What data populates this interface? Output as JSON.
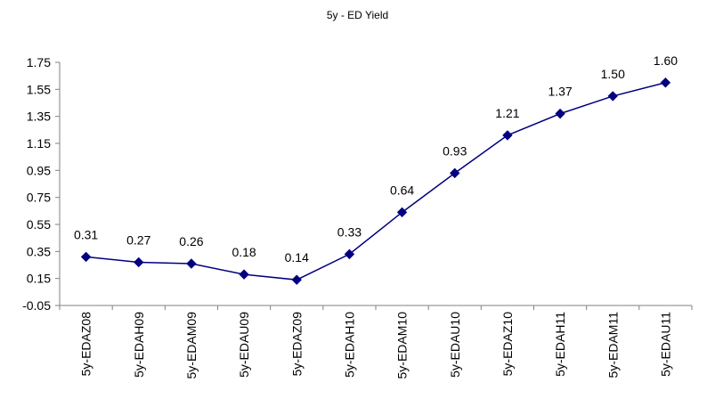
{
  "chart_data": {
    "type": "line",
    "title": "5y - ED Yield",
    "xlabel": "",
    "ylabel": "",
    "categories": [
      "5y-EDAZ08",
      "5y-EDAH09",
      "5y-EDAM09",
      "5y-EDAU09",
      "5y-EDAZ09",
      "5y-EDAH10",
      "5y-EDAM10",
      "5y-EDAU10",
      "5y-EDAZ10",
      "5y-EDAH11",
      "5y-EDAM11",
      "5y-EDAU11"
    ],
    "values": [
      0.31,
      0.27,
      0.26,
      0.18,
      0.14,
      0.33,
      0.64,
      0.93,
      1.21,
      1.37,
      1.5,
      1.6
    ],
    "data_labels": [
      "0.31",
      "0.27",
      "0.26",
      "0.18",
      "0.14",
      "0.33",
      "0.64",
      "0.93",
      "1.21",
      "1.37",
      "1.50",
      "1.60"
    ],
    "y_ticks": [
      "1.75",
      "1.55",
      "1.35",
      "1.15",
      "0.95",
      "0.75",
      "0.55",
      "0.35",
      "0.15",
      "-0.05"
    ],
    "ylim": [
      -0.05,
      1.75
    ],
    "grid": false,
    "legend": "none",
    "colors": {
      "series": "#000080",
      "axis": "#808080"
    }
  }
}
